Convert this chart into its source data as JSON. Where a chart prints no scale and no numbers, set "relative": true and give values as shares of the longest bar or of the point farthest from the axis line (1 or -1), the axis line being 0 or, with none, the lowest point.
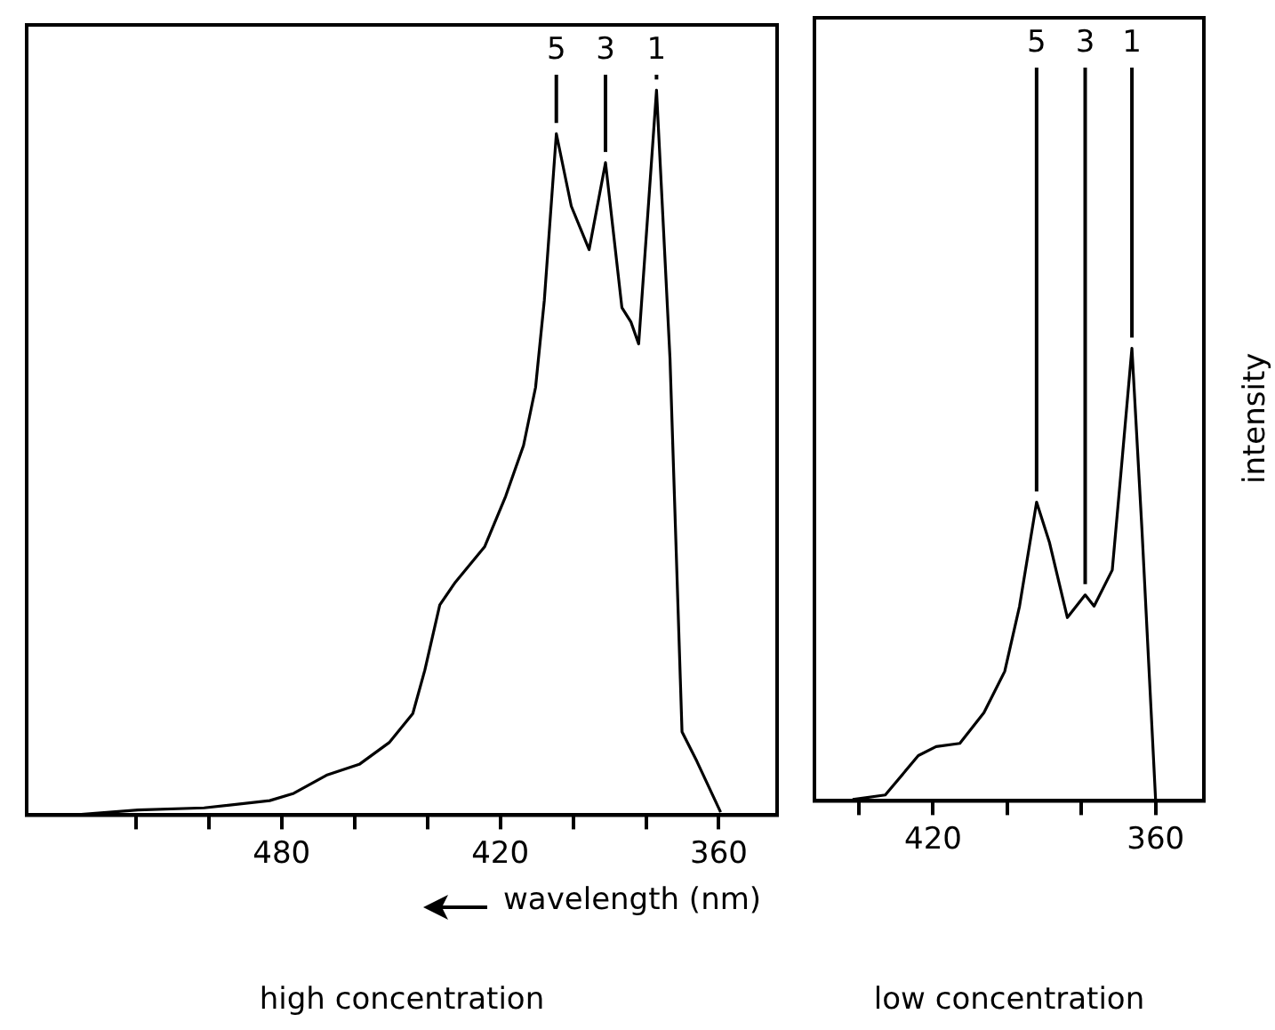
{
  "chart_data": [
    {
      "type": "line",
      "title": "high concentration",
      "xlabel": "wavelength (nm)",
      "relative": true,
      "xlim": [
        550,
        344
      ],
      "xticks": [
        {
          "value": 520,
          "label": null
        },
        {
          "value": 500,
          "label": null
        },
        480,
        {
          "value": 460,
          "label": null
        },
        {
          "value": 440,
          "label": null
        },
        420,
        {
          "value": 400,
          "label": null
        },
        {
          "value": 380,
          "label": null
        },
        360
      ],
      "x": [
        537.4,
        519.4,
        501.3,
        483.3,
        476.7,
        467.7,
        458.7,
        450.5,
        444,
        440.7,
        436.6,
        432.5,
        424.3,
        418.5,
        413.6,
        410.3,
        407.9,
        404.6,
        400.5,
        395.6,
        391.1,
        386.6,
        384.1,
        382,
        377.1,
        373.4,
        370.1,
        366,
        359.5
      ],
      "series": [
        {
          "color": "#000000",
          "values": [
            0,
            0.007,
            0.01,
            0.02,
            0.03,
            0.055,
            0.07,
            0.1,
            0.14,
            0.2,
            0.29,
            0.32,
            0.37,
            0.44,
            0.51,
            0.59,
            0.71,
            0.94,
            0.84,
            0.78,
            0.9,
            0.7,
            0.68,
            0.65,
            1,
            0.63,
            0.115,
            0.074,
            0.004
          ]
        }
      ],
      "annotations": [
        {
          "text": "5",
          "x": 404.6,
          "y": 0.94
        },
        {
          "text": "3",
          "x": 391.1,
          "y": 0.9
        },
        {
          "text": "1",
          "x": 377.1,
          "y": 1
        }
      ],
      "marker": "none",
      "line_style": "solid",
      "grid": false,
      "legend": false
    },
    {
      "type": "line",
      "title": "low concentration",
      "ylabel": "intensity",
      "relative": true,
      "xlim": [
        452,
        347
      ],
      "xticks": [
        {
          "value": 440,
          "label": null
        },
        420,
        {
          "value": 400,
          "label": null
        },
        {
          "value": 380,
          "label": null
        },
        360
      ],
      "x": [
        441.7,
        432.9,
        424,
        419.2,
        412.8,
        406.3,
        400.7,
        396.7,
        392.1,
        388.6,
        383.8,
        379,
        376.6,
        371.7,
        369.3,
        366.4,
        363.7,
        360
      ],
      "series": [
        {
          "color": "#000000",
          "values": [
            0.003,
            0.013,
            0.1,
            0.12,
            0.127,
            0.195,
            0.286,
            0.43,
            0.66,
            0.57,
            0.405,
            0.455,
            0.43,
            0.51,
            0.73,
            1,
            0.6,
            0
          ]
        }
      ],
      "annotations": [
        {
          "text": "5",
          "x": 392.1,
          "y": 0.66
        },
        {
          "text": "3",
          "x": 379,
          "y": 0.455
        },
        {
          "text": "1",
          "x": 366.4,
          "y": 1
        }
      ],
      "marker": "none",
      "line_style": "solid",
      "grid": false,
      "legend": false
    }
  ]
}
